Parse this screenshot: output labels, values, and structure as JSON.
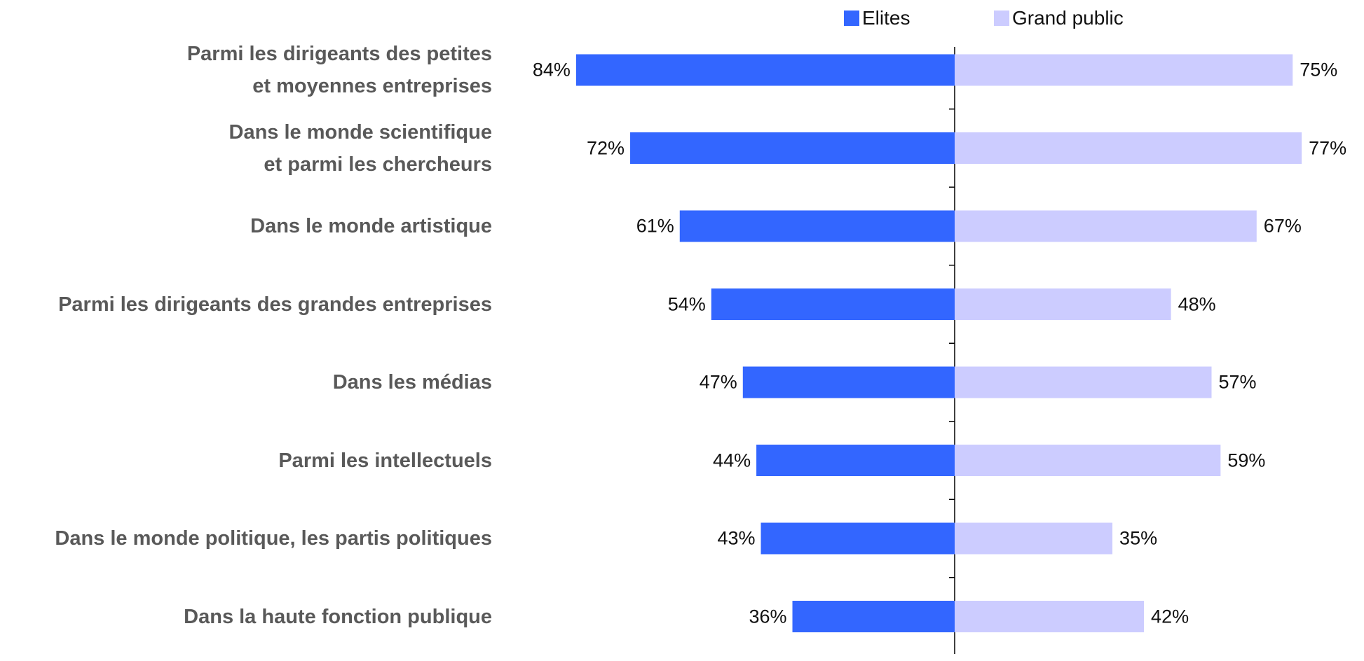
{
  "chart_data": {
    "type": "butterfly-bar",
    "categories": [
      "Parmi les dirigeants des petites\net moyennes entreprises",
      "Dans le monde scientifique\net parmi les chercheurs",
      "Dans le monde artistique",
      "Parmi les dirigeants des grandes entreprises",
      "Dans les médias",
      "Parmi les intellectuels",
      "Dans le monde politique, les partis politiques",
      "Dans la haute fonction publique"
    ],
    "series": [
      {
        "name": "Elites",
        "color": "#3366ff",
        "values": [
          84,
          72,
          61,
          54,
          47,
          44,
          43,
          36
        ],
        "value_labels": [
          "84%",
          "72%",
          "61%",
          "54%",
          "47%",
          "44%",
          "43%",
          "36%"
        ]
      },
      {
        "name": "Grand public",
        "color": "#ccccff",
        "values": [
          75,
          77,
          67,
          48,
          57,
          59,
          35,
          42
        ],
        "value_labels": [
          "75%",
          "77%",
          "67%",
          "48%",
          "57%",
          "59%",
          "35%",
          "42%"
        ]
      }
    ]
  }
}
